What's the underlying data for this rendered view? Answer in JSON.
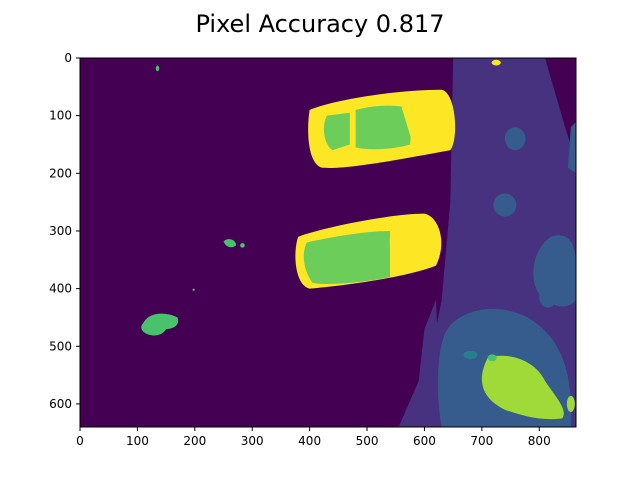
{
  "chart_data": {
    "type": "heatmap",
    "title": "Pixel Accuracy 0.817",
    "xlabel": "",
    "ylabel": "",
    "xlim": [
      0,
      864
    ],
    "ylim": [
      640,
      0
    ],
    "x_ticks": [
      0,
      100,
      200,
      300,
      400,
      500,
      600,
      700,
      800
    ],
    "y_ticks": [
      0,
      100,
      200,
      300,
      400,
      500,
      600
    ],
    "colormap": "viridis",
    "colors": {
      "background": "#440154",
      "road_dark": "#46327e",
      "road_mid": "#365c8d",
      "road_teal": "#277f8e",
      "green": "#4ac16d",
      "green_bright": "#6ccd5a",
      "lime": "#a0da39",
      "yellow": "#fde725"
    },
    "regions": [
      {
        "label": "background",
        "class_color": "background"
      },
      {
        "label": "road",
        "class_color": "road_dark"
      },
      {
        "label": "road patches",
        "class_color": "road_teal"
      },
      {
        "label": "car 1",
        "class_color": "yellow"
      },
      {
        "label": "car 2",
        "class_color": "yellow"
      },
      {
        "label": "small blobs",
        "class_color": "green"
      },
      {
        "label": "lime patch",
        "class_color": "lime"
      }
    ]
  }
}
